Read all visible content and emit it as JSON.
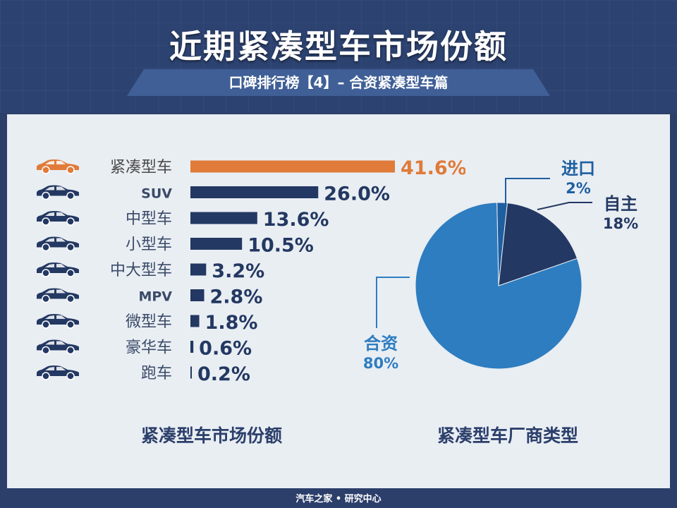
{
  "header": {
    "title": "近期紧凑型车市场份额",
    "subtitle": "口碑排行榜【4】– 合资紧凑型车篇"
  },
  "footer": {
    "text": "汽车之家 • 研究中心"
  },
  "colors": {
    "highlight": "#e07b39",
    "bar": "#233862",
    "pie_joint": "#2e7dc0",
    "pie_domestic": "#233862",
    "pie_import": "#1e5fa0"
  },
  "chart_data": [
    {
      "type": "bar",
      "orientation": "horizontal",
      "title": "紧凑型车市场份额",
      "categories": [
        "紧凑型车",
        "SUV",
        "中型车",
        "小型车",
        "中大型车",
        "MPV",
        "微型车",
        "豪华车",
        "跑车"
      ],
      "values": [
        41.6,
        26.0,
        13.6,
        10.5,
        3.2,
        2.8,
        1.8,
        0.6,
        0.2
      ],
      "value_labels": [
        "41.6%",
        "26.0%",
        "13.6%",
        "10.5%",
        "3.2%",
        "2.8%",
        "1.8%",
        "0.6%",
        "0.2%"
      ],
      "highlight_index": 0,
      "icons": [
        "sedan-icon",
        "suv-icon",
        "sedan-icon",
        "hatchback-icon",
        "sedan-icon",
        "mpv-icon",
        "hatchback-icon",
        "sedan-icon",
        "coupe-icon"
      ]
    },
    {
      "type": "pie",
      "title": "紧凑型车厂商类型",
      "slices": [
        {
          "label": "合资",
          "value": 80,
          "value_label": "80%",
          "color": "#2e7dc0"
        },
        {
          "label": "进口",
          "value": 2,
          "value_label": "2%",
          "color": "#1e5fa0"
        },
        {
          "label": "自主",
          "value": 18,
          "value_label": "18%",
          "color": "#233862"
        }
      ]
    }
  ]
}
